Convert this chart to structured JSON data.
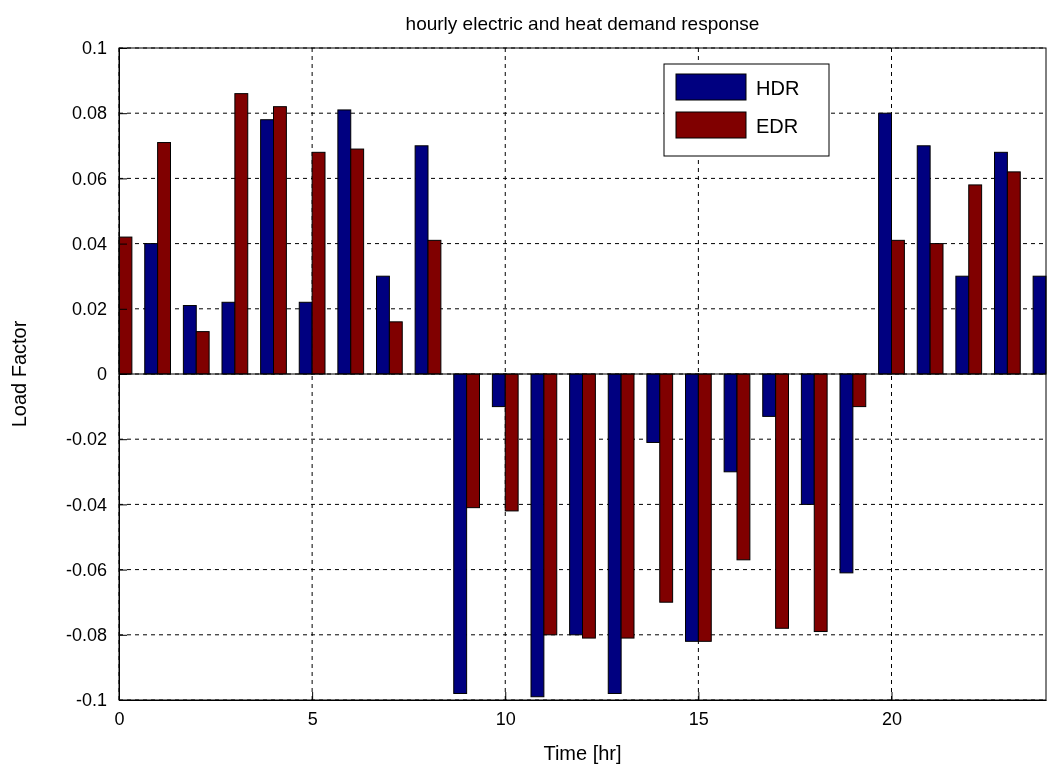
{
  "chart_data": {
    "type": "bar",
    "title": "hourly electric and heat demand response",
    "xlabel": "Time [hr]",
    "ylabel": "Load Factor",
    "x": [
      0,
      1,
      2,
      3,
      4,
      5,
      6,
      7,
      8,
      9,
      10,
      11,
      12,
      13,
      14,
      15,
      16,
      17,
      18,
      19,
      20,
      21,
      22,
      23,
      24
    ],
    "series": [
      {
        "name": "HDR",
        "color": "#000080",
        "values": [
          null,
          0.04,
          0.021,
          0.022,
          0.078,
          0.022,
          0.081,
          0.03,
          0.07,
          -0.098,
          -0.01,
          -0.099,
          -0.08,
          -0.098,
          -0.021,
          -0.082,
          -0.03,
          -0.013,
          -0.04,
          -0.061,
          0.08,
          0.07,
          0.03,
          0.068,
          0.03
        ]
      },
      {
        "name": "EDR",
        "color": "#800000",
        "values": [
          0.042,
          0.071,
          0.013,
          0.086,
          0.082,
          0.068,
          0.069,
          0.016,
          0.041,
          -0.041,
          -0.042,
          -0.08,
          -0.081,
          -0.081,
          -0.07,
          -0.082,
          -0.057,
          -0.078,
          -0.079,
          -0.01,
          0.041,
          0.04,
          0.058,
          0.062,
          null
        ]
      }
    ],
    "xlim": [
      0,
      24
    ],
    "xticks": [
      0,
      5,
      10,
      15,
      20
    ],
    "ylim": [
      -0.1,
      0.1
    ],
    "yticks": [
      -0.1,
      -0.08,
      -0.06,
      -0.04,
      -0.02,
      0,
      0.02,
      0.04,
      0.06,
      0.08,
      0.1
    ],
    "grid": true,
    "legend": "top right"
  }
}
